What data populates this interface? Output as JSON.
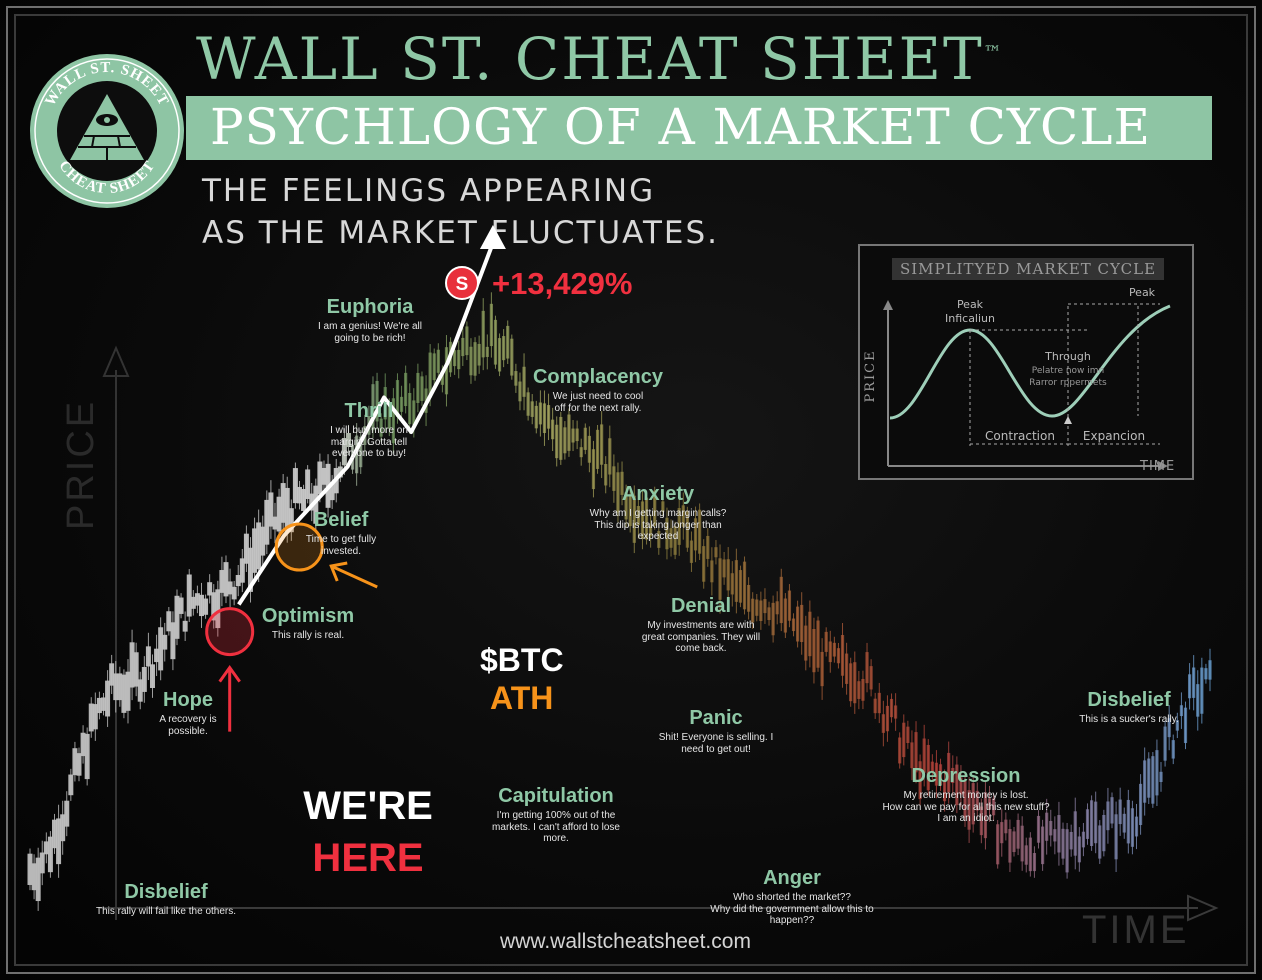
{
  "header": {
    "title": "WALL ST. CHEAT SHEET",
    "trademark": "™",
    "subtitle": "PSYCHLOGY OF A MARKET CYCLE",
    "tagline_line1": "THE FEELINGS APPEARING",
    "tagline_line2": "AS THE MARKET FLUCTUATES."
  },
  "logo": {
    "top_text": "WALL ST. SHEET",
    "bottom_text": "CHEAT SHEET",
    "icon": "pyramid-eye-icon"
  },
  "footer": {
    "website": "www.wallstcheatsheet.com"
  },
  "axes": {
    "price_label": "PRICE",
    "time_label": "TIME"
  },
  "inset": {
    "title": "SIMPLITYED MARKET CYCLE",
    "price_label": "PRICE",
    "time_label": "TIME",
    "labels": {
      "peak_left_1": "Peak",
      "peak_left_2": "Inficaliun",
      "peak_right": "Peak",
      "trough_1": "Through",
      "trough_2": "Pelatre  now imn",
      "trough_3": "Rarror rppermets",
      "contraction": "Contraction",
      "expansion": "Expancion"
    }
  },
  "stages": [
    {
      "name": "Disbelief",
      "desc": [
        "This rally will fail like the others."
      ]
    },
    {
      "name": "Hope",
      "desc": [
        "A recovery is",
        "possible."
      ]
    },
    {
      "name": "Optimism",
      "desc": [
        "This rally is real."
      ]
    },
    {
      "name": "Belief",
      "desc": [
        "Time to get fully",
        "invested."
      ]
    },
    {
      "name": "Thrill",
      "desc": [
        "I will buy more on",
        "margin. Gotta tell",
        "everyone to buy!"
      ]
    },
    {
      "name": "Euphoria",
      "desc": [
        "I am a genius! We're all",
        "going to be rich!"
      ]
    },
    {
      "name": "Complacency",
      "desc": [
        "We just need to cool",
        "off for the next rally."
      ]
    },
    {
      "name": "Anxiety",
      "desc": [
        "Why am I getting margin calls?",
        "This dip is taking longer than",
        "expected"
      ]
    },
    {
      "name": "Denial",
      "desc": [
        "My investments are with",
        "great companies. They will",
        "come back."
      ]
    },
    {
      "name": "Panic",
      "desc": [
        "Shit! Everyone is selling. I",
        "need to get out!"
      ]
    },
    {
      "name": "Capitulation",
      "desc": [
        "I'm getting 100% out of the",
        "markets. I can't afford to lose",
        "more."
      ]
    },
    {
      "name": "Anger",
      "desc": [
        "Who shorted the market??",
        "Why did the government allow this to",
        "happen??"
      ]
    },
    {
      "name": "Depression",
      "desc": [
        "My retirement money is lost.",
        "How can we pay for all this new stuff?",
        "I am an idiot."
      ]
    },
    {
      "name": "Disbelief",
      "desc": [
        "This is a sucker's rally."
      ]
    }
  ],
  "annotations": {
    "gain": "+13,429%",
    "badge": "S",
    "btc_label": "$BTC",
    "ath_label": "ATH",
    "were": "WE'RE",
    "here": "HERE"
  },
  "colors": {
    "accent_green": "#8fc8a6",
    "highlight_red": "#f0303f",
    "btc_orange": "#f7931a"
  },
  "chart_data": {
    "type": "line",
    "xlabel": "TIME",
    "ylabel": "PRICE",
    "grid": false,
    "categories": [
      "Disbelief",
      "Hope",
      "Optimism",
      "Belief",
      "Thrill",
      "Euphoria",
      "Complacency",
      "Anxiety",
      "Denial",
      "Panic",
      "Capitulation",
      "Anger",
      "Depression",
      "Disbelief"
    ],
    "series": [
      {
        "values": [
          8,
          40,
          56,
          72,
          88,
          100,
          82,
          68,
          55,
          43,
          24,
          12,
          16,
          40
        ]
      }
    ],
    "overlay_path": {
      "x": [
        2.3,
        2.8,
        3.5,
        3.9,
        4.2,
        4.6,
        5.1
      ],
      "y": [
        54,
        66,
        78,
        90,
        84,
        96,
        120
      ]
    },
    "markers": {
      "were_here_x": 2.2,
      "btc_ath_x": 2.9
    }
  }
}
